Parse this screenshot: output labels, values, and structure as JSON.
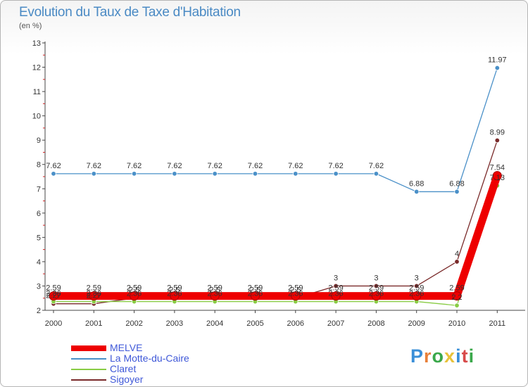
{
  "header": {
    "title": "Evolution du Taux de Taxe d'Habitation",
    "unit": "(en %)"
  },
  "brand": {
    "text": "Proxiti",
    "letter_colors": [
      "#3a8fd8",
      "#e8803a",
      "#3aa84a",
      "#e8c23a",
      "#3a8fd8",
      "#d84a4a",
      "#3aa84a"
    ]
  },
  "chart_data": {
    "type": "line",
    "x": [
      "2000",
      "2001",
      "2002",
      "2003",
      "2004",
      "2005",
      "2006",
      "2007",
      "2008",
      "2009",
      "2010",
      "2011"
    ],
    "ylim": [
      2,
      13
    ],
    "yticks": [
      2,
      3,
      4,
      5,
      6,
      7,
      8,
      9,
      10,
      11,
      12,
      13
    ],
    "grid": false,
    "legend_position": "bottom-left",
    "series": [
      {
        "name": "MELVE",
        "color": "#ee0000",
        "values": [
          2.59,
          2.59,
          2.59,
          2.59,
          2.59,
          2.59,
          2.59,
          2.59,
          2.59,
          2.59,
          2.59,
          7.54
        ],
        "labels": [
          "2.59",
          "2.59",
          "2.59",
          "2.59",
          "2.59",
          "2.59",
          "2.59",
          "2.59",
          "2.59",
          "2.59",
          "2.59",
          "7.54"
        ]
      },
      {
        "name": "La Motte-du-Caire",
        "color": "#4a90c8",
        "values": [
          7.62,
          7.62,
          7.62,
          7.62,
          7.62,
          7.62,
          7.62,
          7.62,
          7.62,
          6.88,
          6.88,
          11.97
        ],
        "labels": [
          "7.62",
          "7.62",
          "7.62",
          "7.62",
          "7.62",
          "7.62",
          "7.62",
          "7.62",
          "7.62",
          "6.88",
          "6.88",
          "11.97"
        ]
      },
      {
        "name": "Claret",
        "color": "#88cc44",
        "values": [
          2.36,
          2.36,
          2.36,
          2.36,
          2.36,
          2.36,
          2.36,
          2.36,
          2.36,
          2.36,
          2.2,
          7.13
        ],
        "labels": [
          "2.36",
          "2.36",
          "2.36",
          "2.36",
          "2.36",
          "2.36",
          "2.36",
          "2.36",
          "2.36",
          "2.36",
          "2.2",
          "7.13"
        ]
      },
      {
        "name": "Sigoyer",
        "color": "#7a2a2a",
        "values": [
          2.27,
          2.27,
          2.5,
          2.5,
          2.5,
          2.5,
          2.5,
          3,
          3,
          3,
          4,
          8.99
        ],
        "labels": [
          "2.27",
          "2.27",
          "2.5",
          "2.5",
          "2.5",
          "2.5",
          "2.5",
          "3",
          "3",
          "3",
          "4",
          "8.99"
        ]
      }
    ]
  }
}
